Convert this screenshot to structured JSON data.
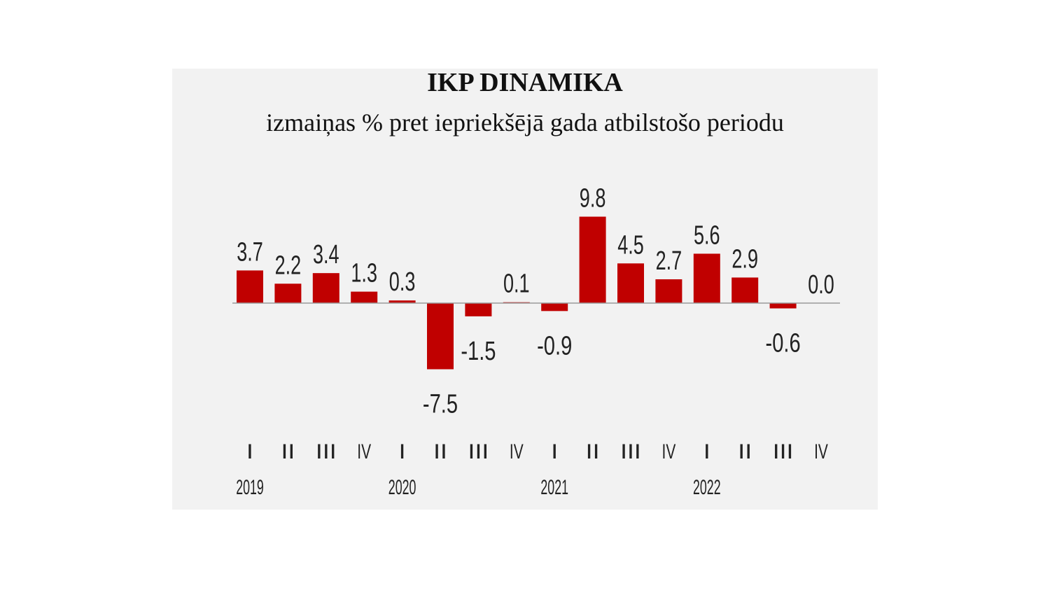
{
  "chart_data": {
    "type": "bar",
    "title": "IKP DINAMIKA",
    "subtitle": "izmaiņas % pret iepriekšējā gada atbilstošo periodu",
    "categories": [
      "I",
      "II",
      "III",
      "IV",
      "I",
      "II",
      "III",
      "IV",
      "I",
      "II",
      "III",
      "IV",
      "I",
      "II",
      "III",
      "IV"
    ],
    "years": [
      "2019",
      "2020",
      "2021",
      "2022"
    ],
    "values": [
      3.7,
      2.2,
      3.4,
      1.3,
      0.3,
      -7.5,
      -1.5,
      0.1,
      -0.9,
      9.8,
      4.5,
      2.7,
      5.6,
      2.9,
      -0.6,
      0.0
    ],
    "value_labels": [
      "3.7",
      "2.2",
      "3.4",
      "1.3",
      "0.3",
      "-7.5",
      "-1.5",
      "0.1",
      "-0.9",
      "9.8",
      "4.5",
      "2.7",
      "5.6",
      "2.9",
      "-0.6",
      "0.0"
    ],
    "bar_color": "#c00000",
    "background": "#f2f2f2",
    "grid": false,
    "legend": "none"
  }
}
